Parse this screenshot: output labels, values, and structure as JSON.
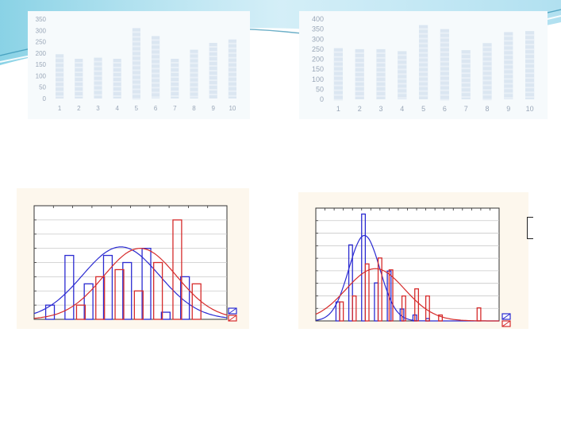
{
  "colors": {
    "bar_fill": "#dbe6f1",
    "bar_stripe": "#e9f0f7",
    "tick_text": "#9aa7b8",
    "blue": "#2b2bd1",
    "red": "#d62b2b",
    "panel_bg": "#fdf7ed",
    "grid": "#c9c9c9"
  },
  "chart_data": [
    {
      "type": "bar",
      "categories": [
        "1",
        "2",
        "3",
        "4",
        "5",
        "6",
        "7",
        "8",
        "9",
        "10"
      ],
      "values": [
        195,
        175,
        180,
        175,
        310,
        275,
        175,
        215,
        245,
        260
      ],
      "ylim": [
        0,
        350
      ],
      "yticks": [
        "0",
        "50",
        "100",
        "150",
        "200",
        "250",
        "300",
        "350"
      ],
      "grid": false
    },
    {
      "type": "bar",
      "categories": [
        "1",
        "2",
        "3",
        "4",
        "5",
        "6",
        "7",
        "8",
        "9",
        "10"
      ],
      "values": [
        255,
        250,
        250,
        240,
        370,
        350,
        245,
        280,
        335,
        340
      ],
      "ylim": [
        0,
        400
      ],
      "yticks": [
        "0",
        "50",
        "100",
        "150",
        "200",
        "250",
        "300",
        "350",
        "400"
      ],
      "grid": false
    },
    {
      "type": "bar",
      "subtype": "histogram-with-normal-fit",
      "xlim": [
        0,
        10
      ],
      "ylim": [
        0,
        8
      ],
      "grid": true,
      "legend": "bottom-right",
      "series": [
        {
          "color": "blue",
          "bins": [
            [
              0.6,
              1
            ],
            [
              1.6,
              4.5
            ],
            [
              2.6,
              2.5
            ],
            [
              3.6,
              4.5
            ],
            [
              4.6,
              4
            ],
            [
              5.6,
              5
            ],
            [
              6.6,
              0.5
            ],
            [
              7.6,
              3
            ]
          ],
          "width": 0.45,
          "fit_mean": 4.5,
          "fit_sd": 2.0,
          "fit_peak": 5.1
        },
        {
          "color": "red",
          "bins": [
            [
              2.2,
              1
            ],
            [
              3.2,
              3
            ],
            [
              4.2,
              3.5
            ],
            [
              5.2,
              2
            ],
            [
              6.2,
              4
            ],
            [
              7.2,
              7
            ],
            [
              8.2,
              2.5
            ]
          ],
          "width": 0.45,
          "fit_mean": 5.5,
          "fit_sd": 1.9,
          "fit_peak": 5.0
        }
      ]
    },
    {
      "type": "bar",
      "subtype": "histogram-with-normal-fit",
      "xlim": [
        0,
        20
      ],
      "ylim": [
        0,
        9.5
      ],
      "grid": true,
      "legend": "bottom-right",
      "series": [
        {
          "color": "blue",
          "bins": [
            [
              2.2,
              1.6
            ],
            [
              3.6,
              6.4
            ],
            [
              5.0,
              9.0
            ],
            [
              6.4,
              3.2
            ],
            [
              7.8,
              4.2
            ],
            [
              9.2,
              1.0
            ],
            [
              10.6,
              0.5
            ],
            [
              12.0,
              0.2
            ]
          ],
          "width": 0.4,
          "fit_mean": 5.3,
          "fit_sd": 1.7,
          "fit_peak": 7.2
        },
        {
          "color": "red",
          "bins": [
            [
              2.6,
              1.6
            ],
            [
              4.0,
              2.1
            ],
            [
              5.4,
              4.8
            ],
            [
              6.8,
              5.3
            ],
            [
              8.0,
              4.3
            ],
            [
              9.4,
              2.1
            ],
            [
              10.8,
              2.7
            ],
            [
              12.0,
              2.1
            ],
            [
              13.4,
              0.5
            ],
            [
              17.6,
              1.1
            ]
          ],
          "width": 0.4,
          "fit_mean": 6.5,
          "fit_sd": 3.2,
          "fit_peak": 4.4
        }
      ]
    }
  ]
}
